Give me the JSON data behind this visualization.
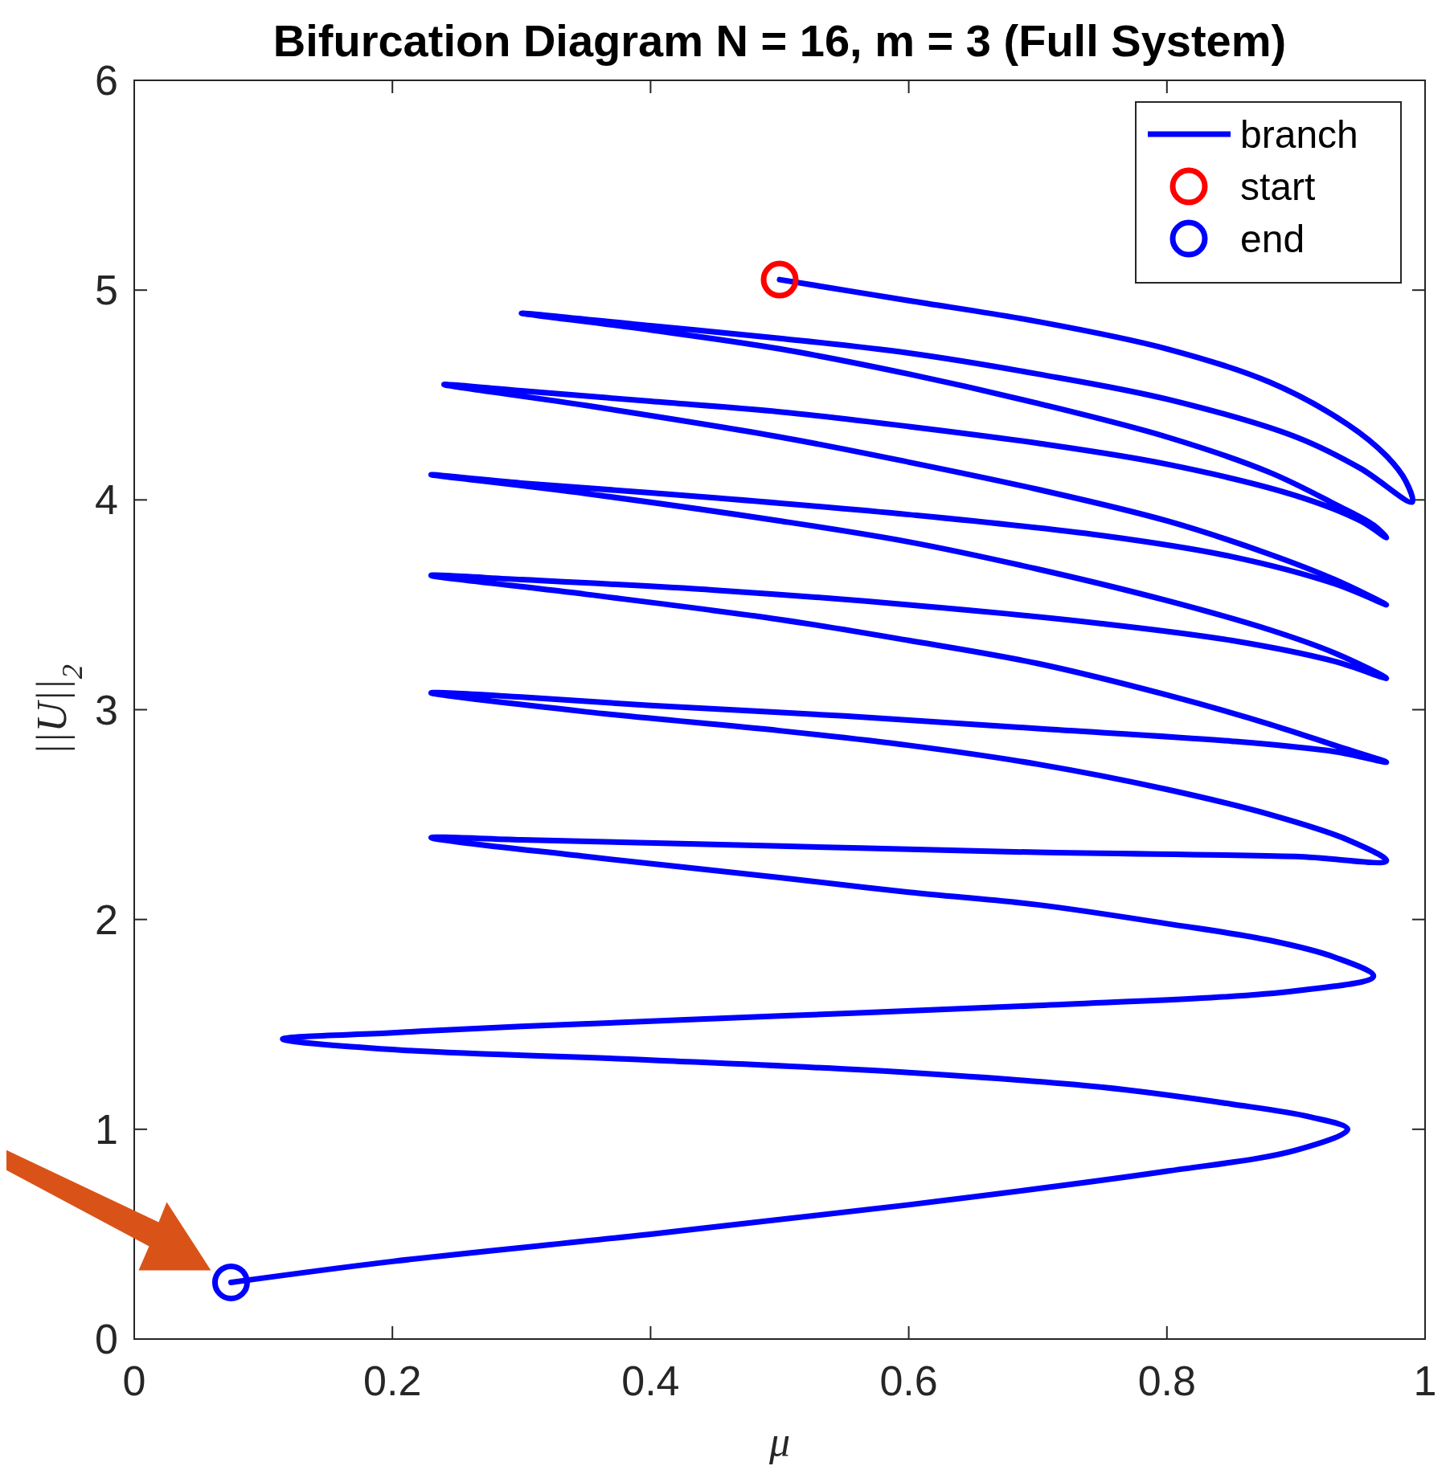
{
  "chart_data": {
    "type": "line",
    "title": "Bifurcation Diagram N = 16, m = 3 (Full System)",
    "xlabel": "μ",
    "ylabel": "||U||$_{2}$",
    "xlim": [
      0,
      1
    ],
    "ylim": [
      0,
      6
    ],
    "xticks": [
      0,
      0.2,
      0.4,
      0.6,
      0.8,
      1
    ],
    "yticks": [
      0,
      1,
      2,
      3,
      4,
      5,
      6
    ],
    "grid": false,
    "legend": "top right",
    "series": [
      {
        "name": "branch",
        "color": "#0000ff",
        "x": [
          0.5,
          0.6,
          0.7,
          0.8,
          0.88,
          0.94,
          0.97,
          0.985,
          0.99,
          0.95,
          0.9,
          0.8,
          0.7,
          0.6,
          0.5,
          0.4,
          0.3,
          0.4,
          0.5,
          0.6,
          0.7,
          0.8,
          0.88,
          0.93,
          0.96,
          0.97,
          0.95,
          0.9,
          0.8,
          0.7,
          0.6,
          0.5,
          0.4,
          0.3,
          0.24,
          0.35,
          0.5,
          0.6,
          0.7,
          0.8,
          0.88,
          0.93,
          0.97,
          0.93,
          0.85,
          0.75,
          0.6,
          0.45,
          0.3,
          0.23,
          0.35,
          0.5,
          0.6,
          0.7,
          0.8,
          0.88,
          0.93,
          0.97,
          0.93,
          0.85,
          0.75,
          0.6,
          0.45,
          0.3,
          0.23,
          0.35,
          0.5,
          0.6,
          0.7,
          0.8,
          0.88,
          0.93,
          0.97,
          0.93,
          0.85,
          0.7,
          0.55,
          0.4,
          0.3,
          0.23,
          0.35,
          0.5,
          0.6,
          0.7,
          0.8,
          0.88,
          0.94,
          0.97,
          0.9,
          0.7,
          0.5,
          0.3,
          0.23,
          0.35,
          0.5,
          0.6,
          0.7,
          0.8,
          0.88,
          0.93,
          0.96,
          0.9,
          0.7,
          0.5,
          0.3,
          0.2,
          0.115,
          0.2,
          0.4,
          0.6,
          0.75,
          0.85,
          0.91,
          0.94,
          0.9,
          0.8,
          0.6,
          0.4,
          0.2,
          0.075
        ],
        "values": [
          5.05,
          4.95,
          4.85,
          4.72,
          4.56,
          4.36,
          4.21,
          4.09,
          3.99,
          4.15,
          4.3,
          4.48,
          4.6,
          4.7,
          4.77,
          4.83,
          4.89,
          4.81,
          4.72,
          4.6,
          4.46,
          4.3,
          4.13,
          3.98,
          3.88,
          3.82,
          3.9,
          4.02,
          4.17,
          4.27,
          4.35,
          4.42,
          4.47,
          4.52,
          4.55,
          4.45,
          4.3,
          4.18,
          4.05,
          3.9,
          3.74,
          3.62,
          3.5,
          3.6,
          3.73,
          3.83,
          3.93,
          4.01,
          4.08,
          4.12,
          4.03,
          3.9,
          3.8,
          3.67,
          3.52,
          3.38,
          3.27,
          3.15,
          3.23,
          3.33,
          3.41,
          3.5,
          3.57,
          3.62,
          3.64,
          3.55,
          3.43,
          3.33,
          3.22,
          3.07,
          2.93,
          2.83,
          2.75,
          2.8,
          2.85,
          2.91,
          2.97,
          3.02,
          3.06,
          3.08,
          2.99,
          2.9,
          2.83,
          2.74,
          2.62,
          2.5,
          2.38,
          2.28,
          2.3,
          2.32,
          2.35,
          2.38,
          2.39,
          2.3,
          2.2,
          2.13,
          2.07,
          1.98,
          1.9,
          1.82,
          1.73,
          1.66,
          1.59,
          1.54,
          1.49,
          1.46,
          1.43,
          1.38,
          1.33,
          1.27,
          1.2,
          1.12,
          1.06,
          1.0,
          0.9,
          0.8,
          0.64,
          0.5,
          0.37,
          0.27
        ]
      },
      {
        "name": "start",
        "type": "scatter",
        "color": "#ff0000",
        "marker": "circle",
        "x": [
          0.5
        ],
        "values": [
          5.05
        ]
      },
      {
        "name": "end",
        "type": "scatter",
        "color": "#0000ff",
        "marker": "circle",
        "x": [
          0.075
        ],
        "values": [
          0.27
        ]
      }
    ]
  }
}
